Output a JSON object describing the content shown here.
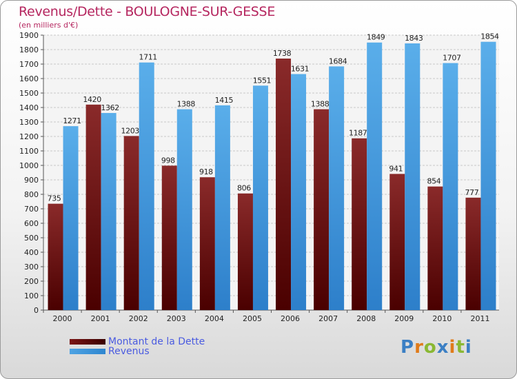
{
  "title": "Revenus/Dette - BOULOGNE-SUR-GESSE",
  "subtitle": "(en milliers d'€)",
  "logo": {
    "letters": [
      {
        "ch": "P",
        "color": "#3b7fc4"
      },
      {
        "ch": "r",
        "color": "#e07b1a"
      },
      {
        "ch": "o",
        "color": "#8ab833"
      },
      {
        "ch": "x",
        "color": "#3b7fc4"
      },
      {
        "ch": "i",
        "color": "#e07b1a"
      },
      {
        "ch": "t",
        "color": "#8ab833"
      },
      {
        "ch": "i",
        "color": "#3b7fc4"
      }
    ]
  },
  "chart_data": {
    "type": "bar",
    "categories": [
      "2000",
      "2001",
      "2002",
      "2003",
      "2004",
      "2005",
      "2006",
      "2007",
      "2008",
      "2009",
      "2010",
      "2011"
    ],
    "series": [
      {
        "name": "Montant de la Dette",
        "color": "#7a1414",
        "values": [
          735,
          1420,
          1203,
          998,
          918,
          806,
          1738,
          1388,
          1187,
          941,
          854,
          777
        ]
      },
      {
        "name": "Revenus",
        "color": "#4ea3e3",
        "values": [
          1271,
          1362,
          1711,
          1388,
          1415,
          1551,
          1631,
          1684,
          1849,
          1843,
          1707,
          1854
        ]
      }
    ],
    "ylim": [
      0,
      1900
    ],
    "yticks": [
      0,
      100,
      200,
      300,
      400,
      500,
      600,
      700,
      800,
      900,
      1000,
      1100,
      1200,
      1300,
      1400,
      1500,
      1600,
      1700,
      1800,
      1900
    ],
    "grid": true,
    "legend_position": "bottom-left"
  }
}
